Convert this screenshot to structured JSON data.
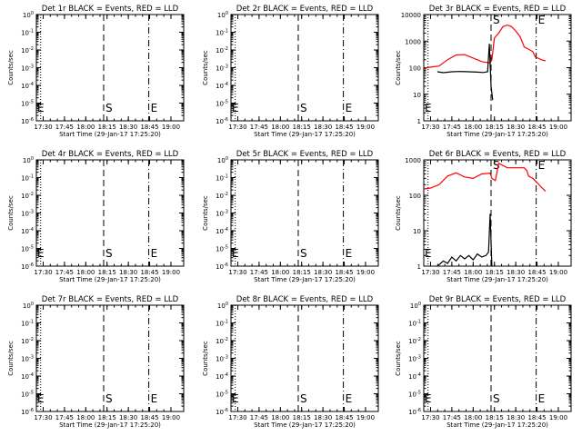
{
  "chart_data": [
    {
      "type": "line",
      "title": "Det 1r BLACK = Events, RED = LLD",
      "xlabel": "Start Time (29-Jan-17 17:25:20)",
      "ylabel": "Counts/sec",
      "xticks": [
        "17:30",
        "17:45",
        "18:00",
        "18:15",
        "18:30",
        "18:45",
        "19:00"
      ],
      "yticks": [
        "10^0",
        "10^-1",
        "10^-2",
        "10^-3",
        "10^-4",
        "10^-5",
        "10^-6"
      ],
      "ylim_exp": [
        -6,
        0
      ],
      "start_label": "S",
      "end_label": "E",
      "series": []
    },
    {
      "type": "line",
      "title": "Det 2r BLACK = Events, RED = LLD",
      "xlabel": "Start Time (29-Jan-17 17:25:20)",
      "ylabel": "Counts/sec",
      "xticks": [
        "17:30",
        "17:45",
        "18:00",
        "18:15",
        "18:30",
        "18:45",
        "19:00"
      ],
      "yticks": [
        "10^0",
        "10^-1",
        "10^-2",
        "10^-3",
        "10^-4",
        "10^-5",
        "10^-6"
      ],
      "ylim_exp": [
        -6,
        0
      ],
      "start_label": "S",
      "end_label": "E",
      "series": []
    },
    {
      "type": "line",
      "title": "Det 3r BLACK = Events, RED = LLD",
      "xlabel": "Start Time (29-Jan-17 17:25:20)",
      "ylabel": "Counts/sec",
      "xticks": [
        "17:30",
        "17:45",
        "18:00",
        "18:15",
        "18:30",
        "18:45",
        "19:00"
      ],
      "yticks": [
        "10000",
        "1000",
        "100",
        "10",
        "1"
      ],
      "ylim_exp": [
        0,
        4
      ],
      "start_label": "S",
      "end_label": "E",
      "series": [
        {
          "color": "#ff0000",
          "x": [
            17.42,
            17.5,
            17.6,
            17.7,
            17.8,
            17.9,
            18.0,
            18.1,
            18.2,
            18.22,
            18.25,
            18.3,
            18.35,
            18.4,
            18.45,
            18.5,
            18.55,
            18.6,
            18.65,
            18.7,
            18.73,
            18.76,
            18.8,
            18.85
          ],
          "y": [
            95,
            105,
            115,
            200,
            300,
            310,
            230,
            170,
            150,
            200,
            1300,
            2000,
            3500,
            4000,
            3500,
            2400,
            1500,
            600,
            500,
            400,
            250,
            230,
            200,
            180
          ]
        },
        {
          "color": "#000000",
          "x": [
            17.58,
            17.65,
            17.75,
            17.85,
            17.95,
            18.05,
            18.12,
            18.17,
            18.19,
            18.21,
            18.23
          ],
          "y": [
            70,
            65,
            70,
            72,
            70,
            68,
            66,
            70,
            800,
            20,
            6
          ]
        }
      ]
    },
    {
      "type": "line",
      "title": "Det 4r BLACK = Events, RED = LLD",
      "xlabel": "Start Time (29-Jan-17 17:25:20)",
      "ylabel": "Counts/sec",
      "xticks": [
        "17:30",
        "17:45",
        "18:00",
        "18:15",
        "18:30",
        "18:45",
        "19:00"
      ],
      "yticks": [
        "10^0",
        "10^-1",
        "10^-2",
        "10^-3",
        "10^-4",
        "10^-5",
        "10^-6"
      ],
      "ylim_exp": [
        -6,
        0
      ],
      "start_label": "S",
      "end_label": "E",
      "series": []
    },
    {
      "type": "line",
      "title": "Det 5r BLACK = Events, RED = LLD",
      "xlabel": "Start Time (29-Jan-17 17:25:20)",
      "ylabel": "Counts/sec",
      "xticks": [
        "17:30",
        "17:45",
        "18:00",
        "18:15",
        "18:30",
        "18:45",
        "19:00"
      ],
      "yticks": [
        "10^0",
        "10^-1",
        "10^-2",
        "10^-3",
        "10^-4",
        "10^-5",
        "10^-6"
      ],
      "ylim_exp": [
        -6,
        0
      ],
      "start_label": "S",
      "end_label": "E",
      "series": []
    },
    {
      "type": "line",
      "title": "Det 6r BLACK = Events, RED = LLD",
      "xlabel": "Start Time (29-Jan-17 17:25:20)",
      "ylabel": "Counts/sec",
      "xticks": [
        "17:30",
        "17:45",
        "18:00",
        "18:15",
        "18:30",
        "18:45",
        "19:00"
      ],
      "yticks": [
        "1000",
        "100",
        "10",
        "1"
      ],
      "ylim_exp": [
        0,
        3
      ],
      "start_label": "S",
      "end_label": "E",
      "series": [
        {
          "color": "#ff0000",
          "x": [
            17.42,
            17.5,
            17.6,
            17.7,
            17.8,
            17.9,
            18.0,
            18.1,
            18.2,
            18.22,
            18.26,
            18.3,
            18.4,
            18.5,
            18.6,
            18.63,
            18.65,
            18.7,
            18.75,
            18.8,
            18.85
          ],
          "y": [
            150,
            160,
            200,
            350,
            430,
            330,
            300,
            400,
            420,
            300,
            260,
            800,
            600,
            600,
            600,
            500,
            350,
            300,
            230,
            170,
            130
          ]
        },
        {
          "color": "#000000",
          "x": [
            17.58,
            17.65,
            17.7,
            17.75,
            17.8,
            17.85,
            17.9,
            17.95,
            18.0,
            18.05,
            18.1,
            18.15,
            18.18,
            18.2,
            18.22
          ],
          "y": [
            1,
            1.4,
            1.2,
            1.8,
            1.4,
            2.0,
            1.6,
            2.0,
            1.5,
            2.2,
            1.8,
            2.0,
            2.5,
            30,
            1
          ]
        }
      ]
    },
    {
      "type": "line",
      "title": "Det 7r BLACK = Events, RED = LLD",
      "xlabel": "Start Time (29-Jan-17 17:25:20)",
      "ylabel": "Counts/sec",
      "xticks": [
        "17:30",
        "17:45",
        "18:00",
        "18:15",
        "18:30",
        "18:45",
        "19:00"
      ],
      "yticks": [
        "10^0",
        "10^-1",
        "10^-2",
        "10^-3",
        "10^-4",
        "10^-5",
        "10^-6"
      ],
      "ylim_exp": [
        -6,
        0
      ],
      "start_label": "S",
      "end_label": "E",
      "series": []
    },
    {
      "type": "line",
      "title": "Det 8r BLACK = Events, RED = LLD",
      "xlabel": "Start Time (29-Jan-17 17:25:20)",
      "ylabel": "Counts/sec",
      "xticks": [
        "17:30",
        "17:45",
        "18:00",
        "18:15",
        "18:30",
        "18:45",
        "19:00"
      ],
      "yticks": [
        "10^0",
        "10^-1",
        "10^-2",
        "10^-3",
        "10^-4",
        "10^-5",
        "10^-6"
      ],
      "ylim_exp": [
        -6,
        0
      ],
      "start_label": "S",
      "end_label": "E",
      "series": []
    },
    {
      "type": "line",
      "title": "Det 9r BLACK = Events, RED = LLD",
      "xlabel": "Start Time (29-Jan-17 17:25:20)",
      "ylabel": "Counts/sec",
      "xticks": [
        "17:30",
        "17:45",
        "18:00",
        "18:15",
        "18:30",
        "18:45",
        "19:00"
      ],
      "yticks": [
        "10^0",
        "10^-1",
        "10^-2",
        "10^-3",
        "10^-4",
        "10^-5",
        "10^-6"
      ],
      "ylim_exp": [
        -6,
        0
      ],
      "start_label": "S",
      "end_label": "E",
      "series": []
    }
  ]
}
